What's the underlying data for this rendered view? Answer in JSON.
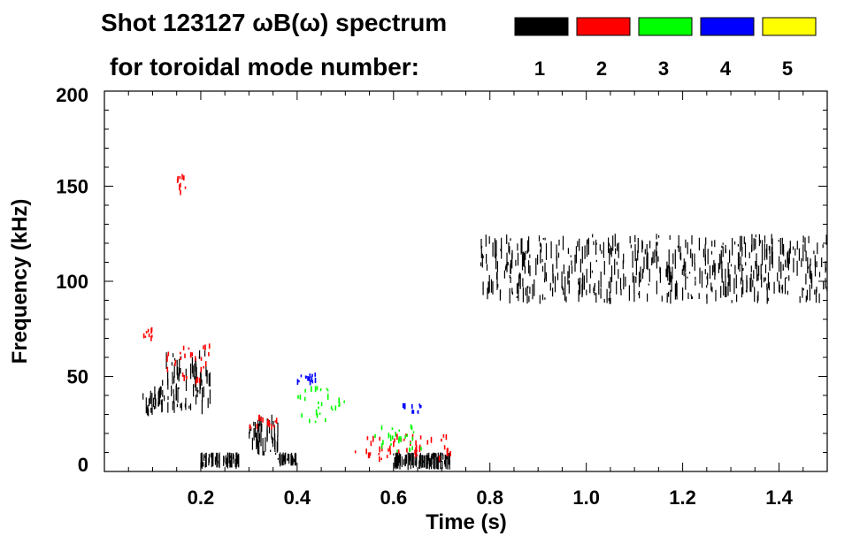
{
  "title_line1": "Shot 123127 ωB(ω) spectrum",
  "title_line2": "for toroidal mode number:",
  "chart_data": {
    "type": "spectrogram",
    "xlabel": "Time (s)",
    "ylabel": "Frequency (kHz)",
    "xlim": [
      0.0,
      1.5
    ],
    "ylim": [
      0,
      200
    ],
    "xticks": [
      0.2,
      0.4,
      0.6,
      0.8,
      1.0,
      1.2,
      1.4
    ],
    "xtick_labels": [
      "0.2",
      "0.4",
      "0.6",
      "0.8",
      "1.0",
      "1.2",
      "1.4"
    ],
    "yticks": [
      0,
      50,
      100,
      150,
      200
    ],
    "ytick_labels": [
      "0",
      "50",
      "100",
      "150",
      "200"
    ],
    "legend": {
      "placement": "top-right",
      "entries": [
        {
          "label": "1",
          "color": "#000000"
        },
        {
          "label": "2",
          "color": "#ff0000"
        },
        {
          "label": "3",
          "color": "#00ff00"
        },
        {
          "label": "4",
          "color": "#0000ff"
        },
        {
          "label": "5",
          "color": "#ffff00"
        }
      ]
    },
    "features": [
      {
        "mode": 1,
        "x": [
          0.08,
          0.12
        ],
        "y": [
          28,
          45
        ]
      },
      {
        "mode": 1,
        "x": [
          0.12,
          0.22
        ],
        "y": [
          30,
          65
        ]
      },
      {
        "mode": 1,
        "x": [
          0.2,
          0.28
        ],
        "y": [
          2,
          10
        ]
      },
      {
        "mode": 1,
        "x": [
          0.3,
          0.36
        ],
        "y": [
          8,
          30
        ]
      },
      {
        "mode": 1,
        "x": [
          0.36,
          0.4
        ],
        "y": [
          3,
          10
        ]
      },
      {
        "mode": 1,
        "x": [
          0.6,
          0.72
        ],
        "y": [
          1,
          10
        ]
      },
      {
        "mode": 1,
        "x": [
          0.78,
          1.5
        ],
        "y": [
          88,
          125
        ]
      },
      {
        "mode": 2,
        "x": [
          0.15,
          0.17
        ],
        "y": [
          143,
          157
        ]
      },
      {
        "mode": 2,
        "x": [
          0.08,
          0.1
        ],
        "y": [
          68,
          76
        ]
      },
      {
        "mode": 2,
        "x": [
          0.12,
          0.22
        ],
        "y": [
          45,
          68
        ]
      },
      {
        "mode": 2,
        "x": [
          0.3,
          0.36
        ],
        "y": [
          22,
          30
        ]
      },
      {
        "mode": 2,
        "x": [
          0.52,
          0.72
        ],
        "y": [
          5,
          20
        ]
      },
      {
        "mode": 3,
        "x": [
          0.4,
          0.5
        ],
        "y": [
          25,
          45
        ]
      },
      {
        "mode": 3,
        "x": [
          0.56,
          0.66
        ],
        "y": [
          10,
          25
        ]
      },
      {
        "mode": 4,
        "x": [
          0.4,
          0.44
        ],
        "y": [
          45,
          52
        ]
      },
      {
        "mode": 4,
        "x": [
          0.62,
          0.66
        ],
        "y": [
          30,
          36
        ]
      }
    ]
  }
}
